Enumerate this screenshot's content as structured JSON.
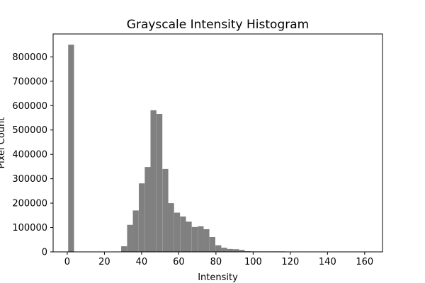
{
  "chart_data": {
    "type": "bar",
    "title": "Grayscale Intensity Histogram",
    "xlabel": "Intensity",
    "ylabel": "Pixel Count",
    "xlim": [
      -7.6,
      169.6
    ],
    "ylim": [
      0,
      894000
    ],
    "grid": false,
    "bar_color": "#808080",
    "bin_width": 3.16,
    "xticks": [
      0,
      20,
      40,
      60,
      80,
      100,
      120,
      140,
      160
    ],
    "yticks": [
      0,
      100000,
      200000,
      300000,
      400000,
      500000,
      600000,
      700000,
      800000
    ],
    "x": [
      0.5,
      3.7,
      6.8,
      10.0,
      13.2,
      16.3,
      19.5,
      22.7,
      25.8,
      29.0,
      32.2,
      35.3,
      38.5,
      41.7,
      44.8,
      48.0,
      51.2,
      54.3,
      57.5,
      60.7,
      63.8,
      67.0,
      70.2,
      73.3,
      76.5,
      79.7,
      82.8,
      86.0,
      89.2,
      92.3,
      95.5,
      98.7,
      101.8,
      105.0,
      108.2,
      111.3,
      114.5,
      117.7,
      120.8,
      124.0,
      127.2,
      130.3,
      133.5,
      136.7,
      139.8,
      143.0,
      146.2,
      149.3,
      152.5
    ],
    "values": [
      850000,
      0,
      0,
      0,
      0,
      0,
      0,
      0,
      0,
      23000,
      111000,
      170000,
      281000,
      348000,
      581000,
      566000,
      340000,
      200000,
      161000,
      145000,
      124000,
      102000,
      105000,
      93000,
      61000,
      27000,
      17000,
      12000,
      11000,
      8000,
      3000,
      2000,
      2000,
      2000,
      2000,
      2000,
      2000,
      1500,
      1500,
      1500,
      1000,
      1000,
      1000,
      1000,
      1000,
      1000,
      800,
      800,
      500
    ]
  }
}
